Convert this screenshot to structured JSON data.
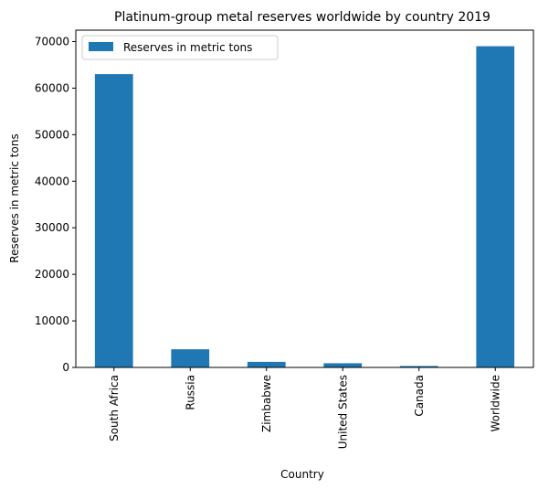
{
  "chart_data": {
    "type": "bar",
    "title": "Platinum-group metal reserves worldwide by country 2019",
    "xlabel": "Country",
    "ylabel": "Reserves in metric tons",
    "categories": [
      "South Africa",
      "Russia",
      "Zimbabwe",
      "United States",
      "Canada",
      "Worldwide"
    ],
    "series": [
      {
        "name": "Reserves in metric tons",
        "values": [
          63000,
          3900,
          1200,
          900,
          310,
          69000
        ],
        "color": "#1f77b4"
      }
    ],
    "ylim": [
      0,
      72450
    ],
    "yticks": [
      0,
      10000,
      20000,
      30000,
      40000,
      50000,
      60000,
      70000
    ],
    "grid": false,
    "legend_position": "top-left"
  }
}
